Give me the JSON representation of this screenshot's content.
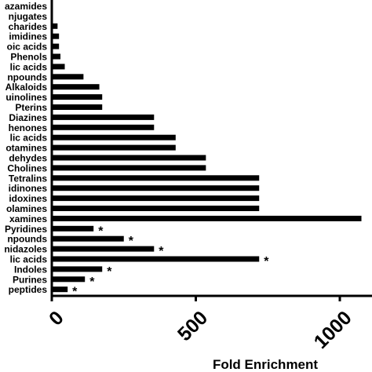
{
  "chart_data": {
    "type": "bar",
    "orientation": "horizontal",
    "xlabel": "Fold  Enrichment",
    "xlim": [
      0,
      1100
    ],
    "xticks": [
      "0",
      "500",
      "1000"
    ],
    "xtick_values": [
      0,
      500,
      1000
    ],
    "grid": false,
    "categories": [
      "azamides",
      "njugates",
      "charides",
      "imidines",
      "oic acids",
      "Phenols",
      "lic acids",
      "npounds",
      "Alkaloids",
      "uinolines",
      "Pterins",
      "Diazines",
      "henones",
      "lic acids",
      "otamines",
      "dehydes",
      "Cholines",
      "Tetralins",
      "idinones",
      "idoxines",
      "olamines",
      "xamines",
      "Pyridines",
      "npounds",
      "nidazoles",
      "lic acids",
      "Indoles",
      "Purines",
      "peptides"
    ],
    "values": [
      0,
      0,
      20,
      25,
      25,
      30,
      45,
      110,
      165,
      175,
      175,
      355,
      355,
      430,
      430,
      535,
      535,
      720,
      720,
      720,
      720,
      1075,
      145,
      250,
      355,
      720,
      175,
      115,
      55
    ],
    "significance": [
      "",
      "",
      "",
      "",
      "",
      "",
      "",
      "",
      "",
      "",
      "",
      "",
      "",
      "",
      "",
      "",
      "",
      "",
      "",
      "",
      "",
      "",
      "*",
      "*",
      "*",
      "*",
      "*",
      "*",
      "*"
    ],
    "bar_color": "#000000"
  }
}
